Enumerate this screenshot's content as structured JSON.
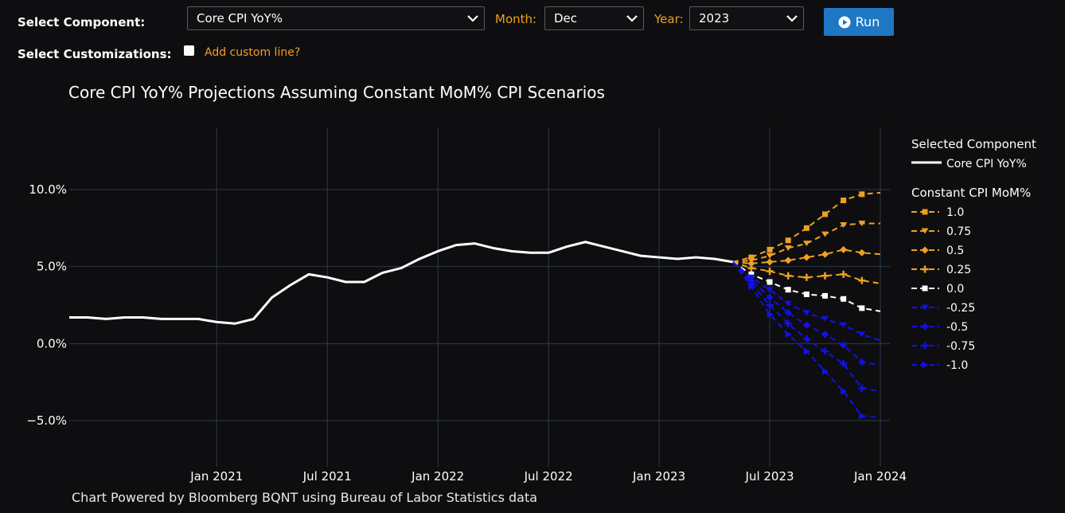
{
  "controls": {
    "component_label": "Select Component:",
    "component_value": "Core CPI YoY%",
    "month_label": "Month:",
    "month_value": "Dec",
    "year_label": "Year:",
    "year_value": "2023",
    "run_label": "Run",
    "customizations_label": "Select Customizations:",
    "custom_line_label": "Add custom line?"
  },
  "footer": "Chart Powered by Bloomberg BQNT using Bureau of Labor Statistics data",
  "colors": {
    "background": "#0e0e10",
    "history": "#ffffff",
    "positive": "#f0a020",
    "zero": "#ffffff",
    "negative": "#1010ee",
    "grid": "#2c3a4a",
    "accent": "#f0a020",
    "button": "#1f77c4"
  },
  "chart_data": {
    "type": "line",
    "title": "Core CPI YoY% Projections Assuming Constant MoM% CPI Scenarios",
    "xlabel": "",
    "ylabel": "",
    "x_ticks": [
      "2021-01",
      "2021-07",
      "2022-01",
      "2022-07",
      "2023-01",
      "2023-07",
      "2024-01"
    ],
    "x_tick_labels": [
      "Jan 2021",
      "Jul 2021",
      "Jan 2022",
      "Jul 2022",
      "Jan 2023",
      "Jul 2023",
      "Jan 2024"
    ],
    "y_ticks": [
      10.0,
      5.0,
      0.0,
      -5.0
    ],
    "y_tick_labels": [
      "10.0%",
      "5.0%",
      "0.0%",
      "−5.0%"
    ],
    "xlim": [
      "2020-05",
      "2024-01"
    ],
    "ylim": [
      -7.5,
      13.7
    ],
    "grid": true,
    "legend_position": "right",
    "legend_group_1_title": "Selected Component",
    "legend_group_2_title": "Constant CPI MoM%",
    "history": {
      "name": "Core CPI YoY%",
      "x": [
        "2020-05",
        "2020-06",
        "2020-07",
        "2020-08",
        "2020-09",
        "2020-10",
        "2020-11",
        "2020-12",
        "2021-01",
        "2021-02",
        "2021-03",
        "2021-04",
        "2021-05",
        "2021-06",
        "2021-07",
        "2021-08",
        "2021-09",
        "2021-10",
        "2021-11",
        "2021-12",
        "2022-01",
        "2022-02",
        "2022-03",
        "2022-04",
        "2022-05",
        "2022-06",
        "2022-07",
        "2022-08",
        "2022-09",
        "2022-10",
        "2022-11",
        "2022-12",
        "2023-01",
        "2023-02",
        "2023-03",
        "2023-04",
        "2023-05"
      ],
      "y": [
        1.7,
        1.7,
        1.6,
        1.7,
        1.7,
        1.6,
        1.6,
        1.6,
        1.4,
        1.3,
        1.6,
        3.0,
        3.8,
        4.5,
        4.3,
        4.0,
        4.0,
        4.6,
        4.9,
        5.5,
        6.0,
        6.4,
        6.5,
        6.2,
        6.0,
        5.9,
        5.9,
        6.3,
        6.6,
        6.3,
        6.0,
        5.7,
        5.6,
        5.5,
        5.6,
        5.5,
        5.3
      ]
    },
    "projection_x": [
      "2023-06",
      "2023-07",
      "2023-08",
      "2023-09",
      "2023-10",
      "2023-11",
      "2023-12",
      "2024-01"
    ],
    "scenarios": [
      {
        "name": "1.0",
        "tone": "positive",
        "marker": "square",
        "y": [
          5.6,
          6.1,
          6.7,
          7.5,
          8.4,
          9.3,
          9.7,
          9.8
        ]
      },
      {
        "name": "0.75",
        "tone": "positive",
        "marker": "tri-down",
        "y": [
          5.4,
          5.7,
          6.2,
          6.5,
          7.1,
          7.7,
          7.8,
          7.8
        ]
      },
      {
        "name": "0.5",
        "tone": "positive",
        "marker": "diamond",
        "y": [
          5.2,
          5.3,
          5.4,
          5.6,
          5.8,
          6.1,
          5.9,
          5.8
        ]
      },
      {
        "name": "0.25",
        "tone": "positive",
        "marker": "cross",
        "y": [
          4.9,
          4.7,
          4.4,
          4.3,
          4.4,
          4.5,
          4.1,
          3.9
        ]
      },
      {
        "name": "0.0",
        "tone": "zero",
        "marker": "square",
        "y": [
          4.5,
          4.0,
          3.5,
          3.2,
          3.1,
          2.9,
          2.3,
          2.1
        ]
      },
      {
        "name": "-0.25",
        "tone": "negative",
        "marker": "tri-down",
        "y": [
          4.3,
          3.5,
          2.6,
          2.0,
          1.6,
          1.2,
          0.6,
          0.2
        ]
      },
      {
        "name": "-0.5",
        "tone": "negative",
        "marker": "diamond",
        "y": [
          4.1,
          3.0,
          2.0,
          1.2,
          0.6,
          -0.1,
          -1.2,
          -1.4
        ]
      },
      {
        "name": "-0.75",
        "tone": "negative",
        "marker": "cross",
        "y": [
          3.9,
          2.5,
          1.3,
          0.3,
          -0.5,
          -1.3,
          -2.9,
          -3.1
        ]
      },
      {
        "name": "-1.0",
        "tone": "negative",
        "marker": "tri-right",
        "y": [
          3.7,
          1.9,
          0.6,
          -0.5,
          -1.8,
          -3.1,
          -4.7,
          -4.8
        ]
      }
    ]
  }
}
